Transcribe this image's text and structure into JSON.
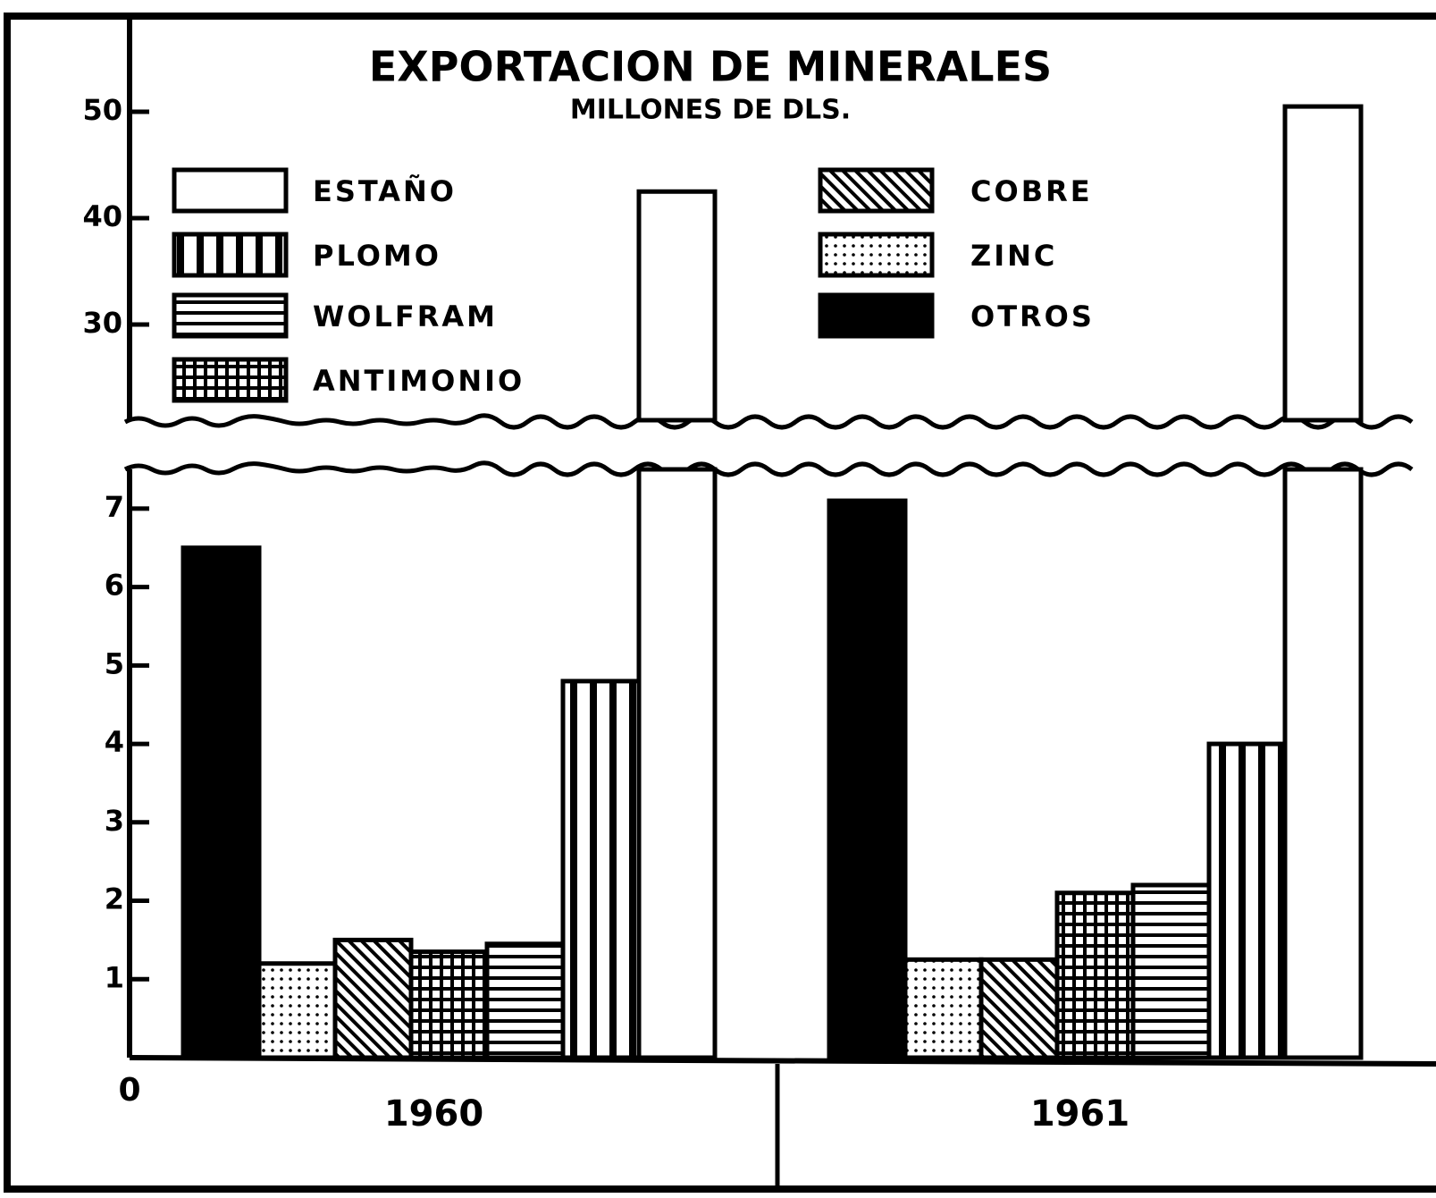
{
  "chart_data": {
    "type": "bar",
    "title": "EXPORTACION DE MINERALES",
    "subtitle": "MILLONES DE DLS.",
    "categories": [
      "1960",
      "1961"
    ],
    "series": [
      {
        "name": "ESTAÑO",
        "color": "#ffffff",
        "pattern": "none",
        "values": [
          42.5,
          50.5
        ]
      },
      {
        "name": "PLOMO",
        "color": "#000000",
        "pattern": "vertical",
        "values": [
          4.8,
          4.0
        ]
      },
      {
        "name": "WOLFRAM",
        "color": "#000000",
        "pattern": "horizontal",
        "values": [
          1.45,
          2.2
        ]
      },
      {
        "name": "ANTIMONIO",
        "color": "#000000",
        "pattern": "grid",
        "values": [
          1.35,
          2.1
        ]
      },
      {
        "name": "COBRE",
        "color": "#000000",
        "pattern": "diagonal",
        "values": [
          1.5,
          1.25
        ]
      },
      {
        "name": "ZINC",
        "color": "#000000",
        "pattern": "dots",
        "values": [
          1.2,
          1.25
        ]
      },
      {
        "name": "OTROS",
        "color": "#000000",
        "pattern": "solid",
        "values": [
          6.5,
          7.1
        ]
      }
    ],
    "ylim": [
      0,
      7.5
    ],
    "yticks": [
      0,
      1,
      2,
      3,
      4,
      5,
      6,
      7
    ],
    "ylim_upper": [
      21,
      59
    ],
    "yticks_upper": [
      30,
      40,
      50
    ],
    "axis_break": true
  }
}
